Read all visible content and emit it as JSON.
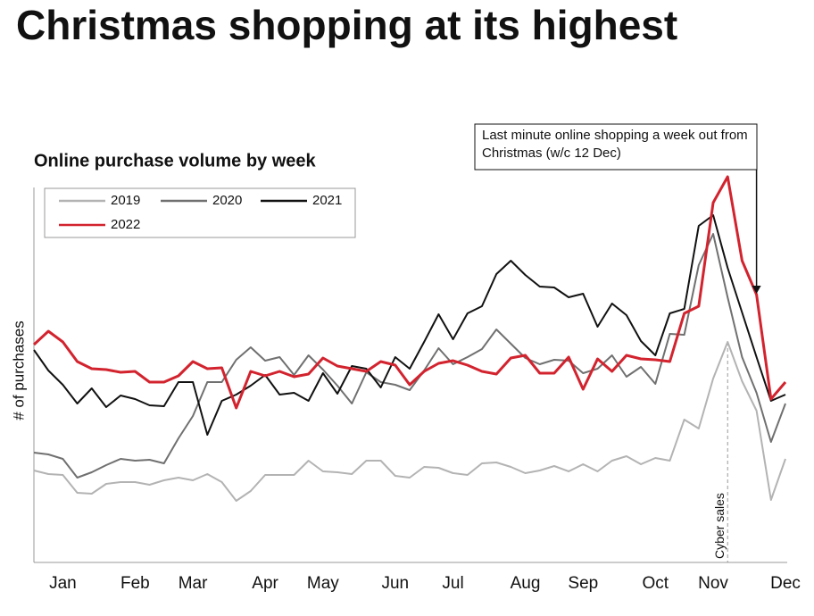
{
  "chart_data": {
    "type": "line",
    "title": "Christmas shopping at its highest",
    "subtitle": "Online purchase volume by week",
    "y_label": "# of purchases",
    "annotation": "Last minute online shopping a week out from Christmas (w/c 12 Dec)",
    "marker_label": "Cyber sales",
    "categories": [
      null,
      null,
      "Jan",
      null,
      null,
      null,
      null,
      "Feb",
      null,
      null,
      null,
      "Mar",
      null,
      null,
      null,
      null,
      "Apr",
      null,
      null,
      null,
      "May",
      null,
      null,
      null,
      null,
      "Jun",
      null,
      null,
      null,
      "Jul",
      null,
      null,
      null,
      null,
      "Aug",
      null,
      null,
      null,
      "Sep",
      null,
      null,
      null,
      null,
      "Oct",
      null,
      null,
      null,
      "Nov",
      null,
      null,
      null,
      null,
      "Dec"
    ],
    "ylim": [
      0,
      430
    ],
    "legend": "top-left",
    "series": [
      {
        "name": "2019",
        "color": "#b3b3b3",
        "values": [
          103,
          99,
          98,
          78,
          77,
          88,
          90,
          90,
          87,
          92,
          95,
          92,
          99,
          90,
          69,
          80,
          98,
          98,
          98,
          114,
          102,
          101,
          99,
          114,
          114,
          97,
          95,
          107,
          106,
          100,
          98,
          111,
          112,
          107,
          100,
          103,
          108,
          102,
          110,
          102,
          114,
          119,
          110,
          117,
          114,
          160,
          150,
          206,
          247,
          203,
          170,
          70,
          116
        ]
      },
      {
        "name": "2020",
        "color": "#707070",
        "values": [
          123,
          121,
          116,
          95,
          101,
          109,
          116,
          114,
          115,
          111,
          139,
          164,
          202,
          202,
          227,
          241,
          226,
          230,
          210,
          232,
          216,
          198,
          178,
          213,
          202,
          199,
          193,
          215,
          240,
          222,
          230,
          239,
          261,
          245,
          229,
          222,
          227,
          226,
          212,
          217,
          232,
          208,
          219,
          200,
          256,
          255,
          333,
          368,
          297,
          230,
          190,
          135,
          178
        ]
      },
      {
        "name": "2021",
        "color": "#111111",
        "values": [
          238,
          215,
          199,
          178,
          195,
          174,
          187,
          183,
          176,
          175,
          202,
          202,
          143,
          181,
          188,
          198,
          210,
          188,
          190,
          181,
          212,
          189,
          220,
          217,
          196,
          230,
          217,
          247,
          278,
          250,
          279,
          287,
          323,
          338,
          322,
          309,
          308,
          297,
          301,
          264,
          290,
          277,
          248,
          232,
          279,
          284,
          377,
          389,
          330,
          280,
          230,
          181,
          188
        ]
      },
      {
        "name": "2022",
        "color": "#d2232e",
        "values": [
          244,
          259,
          247,
          225,
          217,
          216,
          213,
          214,
          202,
          202,
          209,
          225,
          217,
          218,
          173,
          214,
          209,
          214,
          208,
          211,
          229,
          220,
          217,
          214,
          225,
          221,
          199,
          214,
          223,
          226,
          221,
          214,
          211,
          229,
          232,
          212,
          212,
          230,
          194,
          228,
          214,
          232,
          228,
          227,
          225,
          279,
          287,
          403,
          432,
          338,
          300,
          183,
          202
        ]
      }
    ]
  }
}
